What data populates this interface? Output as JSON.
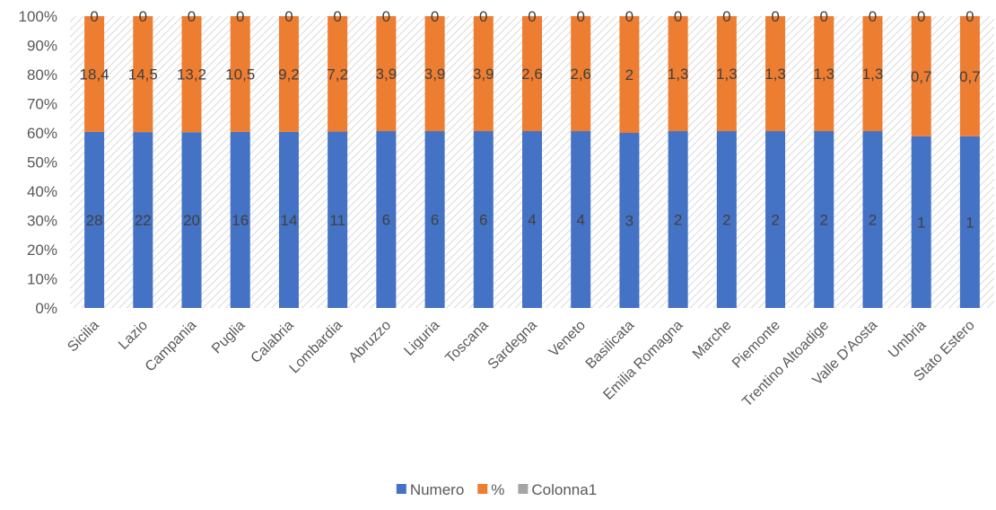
{
  "chart_data": {
    "type": "bar",
    "stacking": "percent",
    "categories": [
      "Sicilia",
      "Lazio",
      "Campania",
      "Puglia",
      "Calabria",
      "Lombardia",
      "Abruzzo",
      "Liguria",
      "Toscana",
      "Sardegna",
      "Veneto",
      "Basilicata",
      "Emilia Romagna",
      "Marche",
      "Piemonte",
      "Trentino Altoadige",
      "Valle D'Aosta",
      "Umbria",
      "Stato Estero"
    ],
    "series": [
      {
        "name": "Numero",
        "color": "#4472C4",
        "values": [
          28,
          22,
          20,
          16,
          14,
          11,
          6,
          6,
          6,
          4,
          4,
          3,
          2,
          2,
          2,
          2,
          2,
          1,
          1
        ]
      },
      {
        "name": "%",
        "color": "#ED7D31",
        "values": [
          18.4,
          14.5,
          13.2,
          10.5,
          9.2,
          7.2,
          3.9,
          3.9,
          3.9,
          2.6,
          2.6,
          2,
          1.3,
          1.3,
          1.3,
          1.3,
          1.3,
          0.7,
          0.7
        ]
      },
      {
        "name": "Colonna1",
        "color": "#A5A5A5",
        "values": [
          0,
          0,
          0,
          0,
          0,
          0,
          0,
          0,
          0,
          0,
          0,
          0,
          0,
          0,
          0,
          0,
          0,
          0,
          0
        ]
      }
    ],
    "data_labels": {
      "Numero": [
        "28",
        "22",
        "20",
        "16",
        "14",
        "11",
        "6",
        "6",
        "6",
        "4",
        "4",
        "3",
        "2",
        "2",
        "2",
        "2",
        "2",
        "1",
        "1"
      ],
      "%": [
        "18,4",
        "14,5",
        "13,2",
        "10,5",
        "9,2",
        "7,2",
        "3,9",
        "3,9",
        "3,9",
        "2,6",
        "2,6",
        "2",
        "1,3",
        "1,3",
        "1,3",
        "1,3",
        "1,3",
        "0,7",
        "0,7"
      ],
      "Colonna1": [
        "0",
        "0",
        "0",
        "0",
        "0",
        "0",
        "0",
        "0",
        "0",
        "0",
        "0",
        "0",
        "0",
        "0",
        "0",
        "0",
        "0",
        "0",
        "0"
      ]
    },
    "yticks": [
      "0%",
      "10%",
      "20%",
      "30%",
      "40%",
      "50%",
      "60%",
      "70%",
      "80%",
      "90%",
      "100%"
    ],
    "ylim": [
      0,
      100
    ],
    "grid": false,
    "legend": "bottom",
    "colors": {
      "plot_pattern": "#d9d9d9",
      "text": "#595959",
      "label": "#404040"
    }
  }
}
